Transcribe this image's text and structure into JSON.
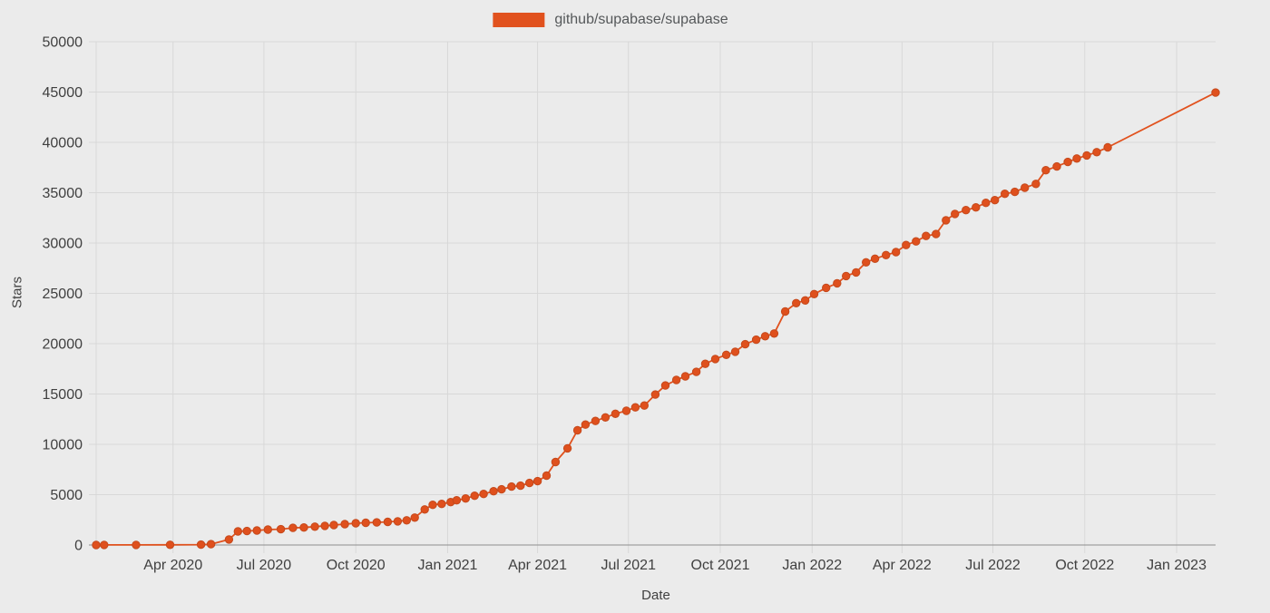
{
  "legend": {
    "label": "github/supabase/supabase"
  },
  "axes": {
    "y_title": "Stars",
    "x_title": "Date"
  },
  "colors": {
    "background": "#EBEBEB",
    "accent": "#E1521E",
    "dot_fill": "#DF501D",
    "dot_stroke": "#C4491C",
    "gridline": "#D8D8D8",
    "axis_line": "#9F9F9F",
    "tick_text": "#404040",
    "legend_text": "#55585A"
  },
  "chart_data": {
    "type": "line",
    "title": "",
    "xlabel": "Date",
    "ylabel": "Stars",
    "grid": true,
    "legend_position": "top-center",
    "x_domain": [
      "2020-01-15",
      "2023-02-09"
    ],
    "ylim": [
      0,
      50000
    ],
    "y_ticks": [
      0,
      5000,
      10000,
      15000,
      20000,
      25000,
      30000,
      35000,
      40000,
      45000,
      50000
    ],
    "x_ticks": [
      {
        "label": "Apr 2020",
        "date": "2020-04-01"
      },
      {
        "label": "Jul 2020",
        "date": "2020-07-01"
      },
      {
        "label": "Oct 2020",
        "date": "2020-10-01"
      },
      {
        "label": "Jan 2021",
        "date": "2021-01-01"
      },
      {
        "label": "Apr 2021",
        "date": "2021-04-01"
      },
      {
        "label": "Jul 2021",
        "date": "2021-07-01"
      },
      {
        "label": "Oct 2021",
        "date": "2021-10-01"
      },
      {
        "label": "Jan 2022",
        "date": "2022-01-01"
      },
      {
        "label": "Apr 2022",
        "date": "2022-04-01"
      },
      {
        "label": "Jul 2022",
        "date": "2022-07-01"
      },
      {
        "label": "Oct 2022",
        "date": "2022-10-01"
      },
      {
        "label": "Jan 2023",
        "date": "2023-01-01"
      }
    ],
    "series": [
      {
        "name": "github/supabase/supabase",
        "color": "#E1521E",
        "points": [
          [
            "2020-01-15",
            0
          ],
          [
            "2020-01-23",
            5
          ],
          [
            "2020-02-24",
            10
          ],
          [
            "2020-03-29",
            15
          ],
          [
            "2020-04-29",
            35
          ],
          [
            "2020-05-09",
            80
          ],
          [
            "2020-05-27",
            550
          ],
          [
            "2020-06-05",
            1350
          ],
          [
            "2020-06-14",
            1390
          ],
          [
            "2020-06-24",
            1440
          ],
          [
            "2020-07-05",
            1530
          ],
          [
            "2020-07-18",
            1570
          ],
          [
            "2020-07-30",
            1700
          ],
          [
            "2020-08-10",
            1740
          ],
          [
            "2020-08-21",
            1820
          ],
          [
            "2020-08-31",
            1900
          ],
          [
            "2020-09-09",
            1980
          ],
          [
            "2020-09-20",
            2070
          ],
          [
            "2020-10-01",
            2160
          ],
          [
            "2020-10-11",
            2210
          ],
          [
            "2020-10-22",
            2240
          ],
          [
            "2020-11-02",
            2300
          ],
          [
            "2020-11-12",
            2350
          ],
          [
            "2020-11-21",
            2450
          ],
          [
            "2020-11-29",
            2720
          ],
          [
            "2020-12-09",
            3530
          ],
          [
            "2020-12-17",
            3990
          ],
          [
            "2020-12-26",
            4080
          ],
          [
            "2021-01-04",
            4260
          ],
          [
            "2021-01-10",
            4440
          ],
          [
            "2021-01-19",
            4620
          ],
          [
            "2021-01-28",
            4890
          ],
          [
            "2021-02-06",
            5070
          ],
          [
            "2021-02-16",
            5340
          ],
          [
            "2021-02-24",
            5530
          ],
          [
            "2021-03-06",
            5800
          ],
          [
            "2021-03-15",
            5890
          ],
          [
            "2021-03-24",
            6160
          ],
          [
            "2021-04-01",
            6340
          ],
          [
            "2021-04-10",
            6890
          ],
          [
            "2021-04-19",
            8240
          ],
          [
            "2021-05-01",
            9600
          ],
          [
            "2021-05-11",
            11400
          ],
          [
            "2021-05-19",
            11960
          ],
          [
            "2021-05-29",
            12320
          ],
          [
            "2021-06-08",
            12680
          ],
          [
            "2021-06-18",
            13040
          ],
          [
            "2021-06-29",
            13330
          ],
          [
            "2021-07-08",
            13680
          ],
          [
            "2021-07-17",
            13860
          ],
          [
            "2021-07-28",
            14950
          ],
          [
            "2021-08-07",
            15850
          ],
          [
            "2021-08-18",
            16400
          ],
          [
            "2021-08-27",
            16760
          ],
          [
            "2021-09-07",
            17200
          ],
          [
            "2021-09-16",
            18000
          ],
          [
            "2021-09-26",
            18480
          ],
          [
            "2021-10-07",
            18890
          ],
          [
            "2021-10-16",
            19200
          ],
          [
            "2021-10-26",
            19950
          ],
          [
            "2021-11-06",
            20400
          ],
          [
            "2021-11-15",
            20740
          ],
          [
            "2021-11-24",
            21010
          ],
          [
            "2021-12-05",
            23200
          ],
          [
            "2021-12-16",
            24030
          ],
          [
            "2021-12-25",
            24300
          ],
          [
            "2022-01-03",
            24930
          ],
          [
            "2022-01-15",
            25550
          ],
          [
            "2022-01-26",
            26000
          ],
          [
            "2022-02-04",
            26720
          ],
          [
            "2022-02-14",
            27080
          ],
          [
            "2022-02-24",
            28080
          ],
          [
            "2022-03-05",
            28440
          ],
          [
            "2022-03-16",
            28800
          ],
          [
            "2022-03-26",
            29100
          ],
          [
            "2022-04-05",
            29800
          ],
          [
            "2022-04-15",
            30160
          ],
          [
            "2022-04-25",
            30700
          ],
          [
            "2022-05-05",
            30890
          ],
          [
            "2022-05-15",
            32260
          ],
          [
            "2022-05-24",
            32890
          ],
          [
            "2022-06-04",
            33270
          ],
          [
            "2022-06-14",
            33540
          ],
          [
            "2022-06-24",
            33990
          ],
          [
            "2022-07-03",
            34260
          ],
          [
            "2022-07-13",
            34890
          ],
          [
            "2022-07-23",
            35080
          ],
          [
            "2022-08-02",
            35500
          ],
          [
            "2022-08-13",
            35870
          ],
          [
            "2022-08-23",
            37230
          ],
          [
            "2022-09-03",
            37600
          ],
          [
            "2022-09-14",
            38050
          ],
          [
            "2022-09-23",
            38400
          ],
          [
            "2022-10-03",
            38700
          ],
          [
            "2022-10-13",
            39030
          ],
          [
            "2022-10-24",
            39500
          ],
          [
            "2023-02-09",
            44950
          ]
        ]
      }
    ]
  }
}
